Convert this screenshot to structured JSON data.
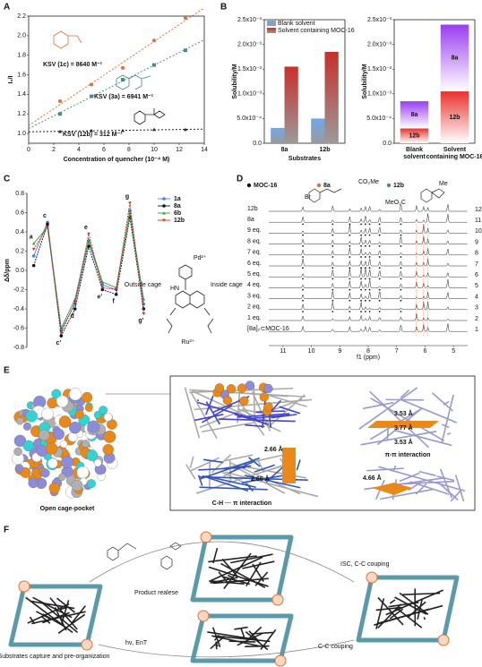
{
  "panels": [
    "A",
    "B",
    "C",
    "D",
    "E",
    "F"
  ],
  "chart_data": [
    {
      "type": "scatter",
      "trendline": "dashed",
      "xlabel": "Concentration of quencher (10⁻⁴ M)",
      "ylabel": "I₀/I",
      "x": [
        2.5,
        5,
        7.5,
        10,
        12.5
      ],
      "xlim": [
        0,
        14
      ],
      "xticks": [
        0,
        2,
        4,
        6,
        8,
        10,
        12,
        14
      ],
      "ylim": [
        0.9,
        2.2
      ],
      "yticks": [
        {
          "value": 1,
          "label": "1.0"
        },
        1.2,
        1.4,
        1.6,
        1.8,
        {
          "value": 2,
          "label": "2.0"
        },
        2.2
      ],
      "series": [
        {
          "annotation": "KSV (1c) = 8640 M⁻¹",
          "color": "#e0703a",
          "marker": "circle",
          "values": [
            1.33,
            1.5,
            1.67,
            1.95,
            2.18
          ]
        },
        {
          "annotation": "KSV (3a) = 6941 M⁻¹",
          "color": "#4f8c80",
          "marker": "square",
          "values": [
            1.2,
            1.38,
            1.55,
            1.7,
            1.85
          ]
        },
        {
          "annotation": "KSV (12b) = 312 M⁻¹",
          "color": "#222222",
          "marker": "triangle",
          "values": [
            1.02,
            1.03,
            1.03,
            1.04,
            1.04
          ]
        }
      ]
    },
    {
      "type": "bar",
      "xlabel": "Substrates",
      "ylabel": "Solubility/M",
      "categories": [
        "8a",
        "12b"
      ],
      "ylim": [
        0,
        0.0025
      ],
      "yticks": [
        {
          "value": 0,
          "label": "0.0"
        },
        {
          "value": 0.0005,
          "label": "5.0x10⁻⁴"
        },
        {
          "value": 0.001,
          "label": "1.0x10⁻³"
        },
        {
          "value": 0.0015,
          "label": "1.5x10⁻³"
        },
        {
          "value": 0.002,
          "label": "2.0x10⁻³"
        },
        {
          "value": 0.0025,
          "label": "2.5x10⁻³"
        }
      ],
      "series": [
        {
          "name": "Blank solvent",
          "color": "#6fa8e8",
          "values": [
            0.00031,
            0.0005
          ]
        },
        {
          "name": "Solvent containing MOC-16",
          "color": "#c8302a",
          "values": [
            0.00155,
            0.00185
          ]
        }
      ]
    },
    {
      "type": "stacked_bar",
      "ylabel": "Solubility/M",
      "categories": [
        "Blank solvent",
        "Solvent containing MOC-16"
      ],
      "ylim": [
        0,
        0.0025
      ],
      "yticks": [
        {
          "value": 0,
          "label": "0.0"
        },
        {
          "value": 0.0005,
          "label": "5.0x10⁻⁴"
        },
        {
          "value": 0.001,
          "label": "1.0x10⁻³"
        },
        {
          "value": 0.0015,
          "label": "1.5x10⁻³"
        },
        {
          "value": 0.002,
          "label": "2.0x10⁻³"
        },
        {
          "value": 0.0025,
          "label": "2.5x10⁻³"
        }
      ],
      "series": [
        {
          "name": "12b",
          "color": "#e8312c",
          "values": [
            0.0003,
            0.00105
          ]
        },
        {
          "name": "8a",
          "color": "#9a3df0",
          "values": [
            0.00055,
            0.00135
          ]
        }
      ]
    },
    {
      "type": "line",
      "ylabel": "Δδ/ppm",
      "categories": [
        "a",
        "c",
        "c'",
        "d",
        "e",
        "e'",
        "f",
        "g",
        "g'"
      ],
      "ylim": [
        -0.8,
        0.8
      ],
      "yticks": [
        -0.8,
        -0.6,
        -0.4,
        -0.2,
        {
          "value": 0,
          "label": "0.0"
        },
        0.2,
        0.4,
        0.6,
        0.8
      ],
      "series": [
        {
          "name": "1a",
          "color": "#4a7fd4",
          "marker": "circle",
          "values": [
            0.15,
            0.5,
            -0.62,
            -0.35,
            0.3,
            -0.15,
            -0.2,
            0.62,
            -0.35
          ]
        },
        {
          "name": "8a",
          "color": "#111111",
          "marker": "circle",
          "values": [
            0.05,
            0.48,
            -0.68,
            -0.4,
            0.25,
            -0.2,
            -0.25,
            0.55,
            -0.4
          ]
        },
        {
          "name": "6b",
          "color": "#3a9a3a",
          "marker": "triangle",
          "values": [
            0.28,
            0.45,
            -0.6,
            -0.3,
            0.32,
            -0.12,
            -0.18,
            0.6,
            -0.3
          ]
        },
        {
          "name": "12b",
          "color": "#c8302a",
          "marker": "triangle-down",
          "values": [
            0.22,
            0.45,
            -0.65,
            -0.33,
            0.38,
            -0.18,
            -0.2,
            0.7,
            -0.45
          ]
        }
      ]
    }
  ],
  "structure": {
    "outside": "Outside cage",
    "inside": "Inside cage",
    "pd": "Pd²⁺",
    "ru": "Ru²⁺",
    "hn": "HN"
  },
  "nmr": {
    "legend": [
      {
        "name": "MOC-16",
        "color": "#111111"
      },
      {
        "name": "8a",
        "color": "#e0703a"
      },
      {
        "name": "12b",
        "color": "#4f8c80"
      }
    ],
    "molecule_labels": [
      "CO₂Me",
      "Br",
      "MeO₂C",
      "Me"
    ],
    "rows": [
      "12b",
      "8a",
      "9 eq.",
      "8 eq.",
      "7 eq.",
      "6 eq.",
      "5 eq.",
      "4 eq.",
      "3 eq.",
      "2 eq.",
      "1 eq.",
      "[8a]₂⊂MOC-16"
    ],
    "row_numbers": [
      12,
      11,
      10,
      9,
      8,
      7,
      6,
      5,
      4,
      3,
      2,
      1
    ],
    "xlabel": "f1 (ppm)",
    "xlim": [
      11.5,
      4.5
    ],
    "xticks": [
      11,
      10,
      9,
      8,
      7,
      6,
      5
    ]
  },
  "panel_e": {
    "caption": "Open cage-pocket",
    "distances": [
      "3.53 Å",
      "3.77 Å",
      "3.53 Å",
      "2.66 Å",
      "2.66 Å",
      "4.66 Å"
    ],
    "pi_pi": "π-π interaction",
    "ch_pi": "C-H ··· π interaction"
  },
  "panel_f": {
    "release": "Product realese",
    "capture": "Substrates capture and pre-organization",
    "ent": "hν, EnT",
    "isc": "ISC, C-C couping",
    "cc": "C-C couping"
  }
}
